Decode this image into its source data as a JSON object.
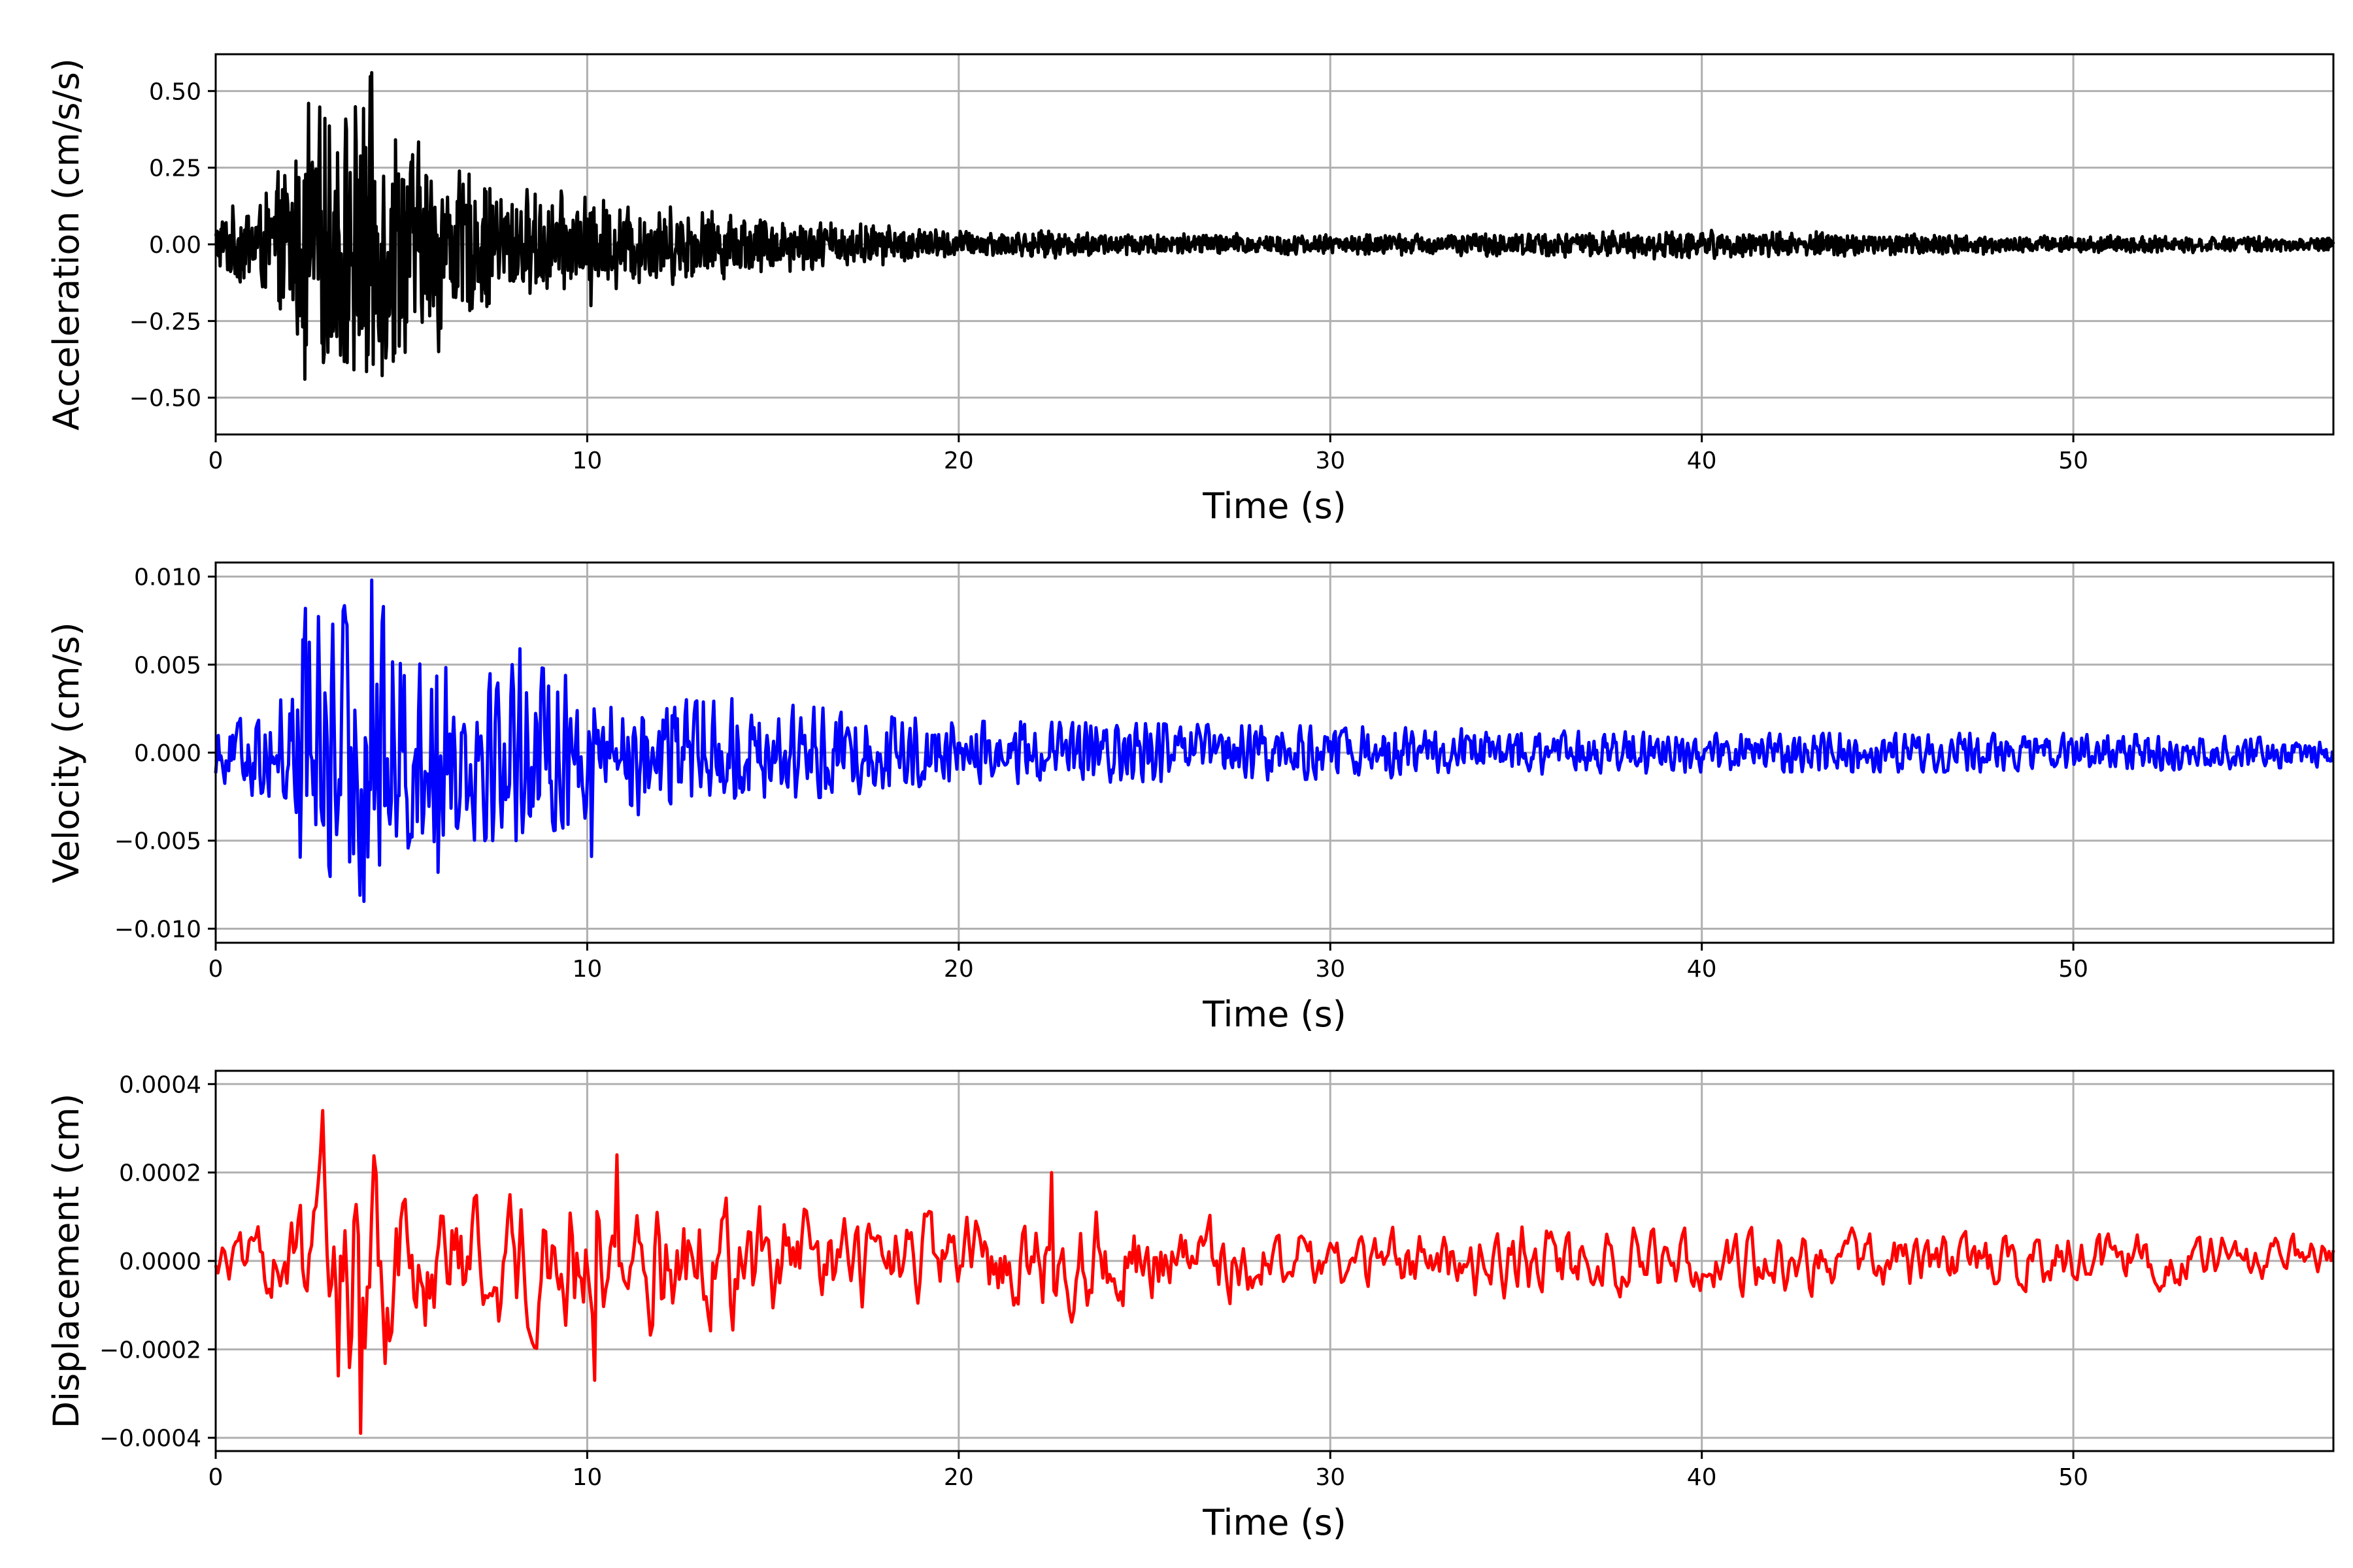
{
  "chart_data": [
    {
      "type": "line",
      "xlabel": "Time (s)",
      "ylabel": "Acceleration (cm/s/s)",
      "xlim": [
        0,
        57
      ],
      "ylim": [
        -0.62,
        0.62
      ],
      "xticks": [
        0,
        10,
        20,
        30,
        40,
        50
      ],
      "xtick_labels": [
        "0",
        "10",
        "20",
        "30",
        "40",
        "50"
      ],
      "yticks": [
        -0.5,
        -0.25,
        0.0,
        0.25,
        0.5
      ],
      "ytick_labels": [
        "−0.50",
        "−0.25",
        "0.00",
        "0.25",
        "0.50"
      ],
      "grid": true,
      "series": [
        {
          "color": "#000000",
          "envelope": {
            "t": [
              0,
              1.5,
              2.5,
              4.2,
              6,
              8,
              10,
              15,
              20,
              30,
              40,
              50,
              57
            ],
            "amp": [
              0.1,
              0.2,
              0.45,
              0.55,
              0.3,
              0.2,
              0.17,
              0.1,
              0.05,
              0.035,
              0.05,
              0.03,
              0.025
            ]
          },
          "peaks": [
            [
              2.4,
              -0.44
            ],
            [
              2.5,
              0.46
            ],
            [
              4.2,
              0.56
            ],
            [
              4.1,
              -0.36
            ],
            [
              6.0,
              0.31
            ],
            [
              6.0,
              -0.35
            ],
            [
              10.1,
              -0.2
            ]
          ]
        }
      ]
    },
    {
      "type": "line",
      "xlabel": "Time (s)",
      "ylabel": "Velocity (cm/s)",
      "xlim": [
        0,
        57
      ],
      "ylim": [
        -0.0108,
        0.0108
      ],
      "xticks": [
        0,
        10,
        20,
        30,
        40,
        50
      ],
      "xtick_labels": [
        "0",
        "10",
        "20",
        "30",
        "40",
        "50"
      ],
      "yticks": [
        -0.01,
        -0.005,
        0.0,
        0.005,
        0.01
      ],
      "ytick_labels": [
        "−0.010",
        "−0.005",
        "0.000",
        "0.005",
        "0.010"
      ],
      "grid": true,
      "series": [
        {
          "color": "#0000ff",
          "envelope": {
            "t": [
              0,
              1.5,
              2.5,
              4.2,
              6,
              8.5,
              10,
              15,
              20,
              30,
              40,
              50,
              57
            ],
            "amp": [
              0.0015,
              0.003,
              0.0075,
              0.009,
              0.005,
              0.005,
              0.004,
              0.0028,
              0.0018,
              0.0015,
              0.0011,
              0.0011,
              0.0008
            ]
          },
          "peaks": [
            [
              4.2,
              0.0098
            ],
            [
              3.9,
              -0.0081
            ],
            [
              2.4,
              0.0082
            ],
            [
              6.0,
              -0.0068
            ],
            [
              8.2,
              0.0059
            ],
            [
              10.1,
              -0.0059
            ]
          ]
        }
      ]
    },
    {
      "type": "line",
      "xlabel": "Time (s)",
      "ylabel": "Displacement (cm)",
      "xlim": [
        0,
        57
      ],
      "ylim": [
        -0.00043,
        0.00043
      ],
      "xticks": [
        0,
        10,
        20,
        30,
        40,
        50
      ],
      "xtick_labels": [
        "0",
        "10",
        "20",
        "30",
        "40",
        "50"
      ],
      "yticks": [
        -0.0004,
        -0.0002,
        0.0,
        0.0002,
        0.0004
      ],
      "ytick_labels": [
        "−0.0004",
        "−0.0002",
        "0.0000",
        "0.0002",
        "0.0004"
      ],
      "grid": true,
      "series": [
        {
          "color": "#ff0000",
          "envelope": {
            "t": [
              0,
              2,
              3,
              4,
              6,
              9,
              11,
              15,
              20,
              22.5,
              26,
              30,
              35,
              40,
              50,
              57
            ],
            "amp": [
              5e-05,
              0.00012,
              0.0003,
              0.00035,
              0.00018,
              0.0002,
              0.0002,
              0.00015,
              0.00011,
              0.00015,
              0.00012,
              8e-05,
              0.0001,
              8e-05,
              8e-05,
              6e-05
            ]
          },
          "peaks": [
            [
              2.9,
              0.00034
            ],
            [
              3.9,
              -0.00039
            ],
            [
              10.8,
              0.00024
            ],
            [
              3.3,
              -0.00026
            ],
            [
              10.2,
              -0.00027
            ],
            [
              22.5,
              0.0002
            ]
          ]
        }
      ]
    }
  ]
}
